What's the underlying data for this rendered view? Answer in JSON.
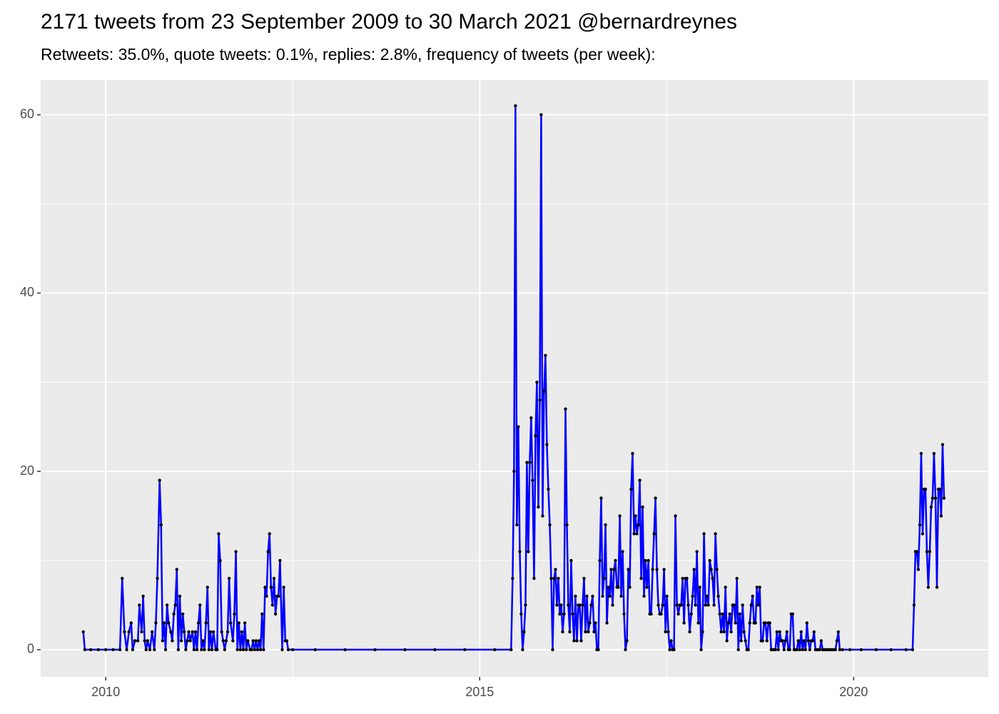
{
  "chart_data": {
    "type": "line",
    "title": "2171 tweets from 23 September 2009 to 30 March 2021 @bernardreynes",
    "subtitle": "Retweets: 35.0%, quote tweets: 0.1%, replies: 2.8%, frequency of tweets (per week):",
    "color": "#0000ff",
    "point_color": "#000000",
    "grid": true,
    "minor_grid": true,
    "xlim": [
      2009.13,
      2021.8
    ],
    "ylim": [
      -3.05,
      63.9
    ],
    "xticks": [
      2010,
      2015,
      2020
    ],
    "yticks": [
      0,
      20,
      40,
      60
    ],
    "x": [
      2009.7,
      2009.72,
      2009.8,
      2009.9,
      2010.0,
      2010.1,
      2010.19,
      2010.22,
      2010.25,
      2010.28,
      2010.31,
      2010.34,
      2010.36,
      2010.39,
      2010.43,
      2010.45,
      2010.48,
      2010.5,
      2010.52,
      2010.54,
      2010.56,
      2010.59,
      2010.62,
      2010.65,
      2010.67,
      2010.69,
      2010.72,
      2010.74,
      2010.76,
      2010.78,
      2010.8,
      2010.82,
      2010.84,
      2010.87,
      2010.89,
      2010.91,
      2010.93,
      2010.95,
      2010.97,
      2010.99,
      2011.01,
      2011.03,
      2011.05,
      2011.07,
      2011.09,
      2011.11,
      2011.13,
      2011.16,
      2011.18,
      2011.2,
      2011.22,
      2011.24,
      2011.26,
      2011.28,
      2011.3,
      2011.32,
      2011.34,
      2011.36,
      2011.38,
      2011.4,
      2011.42,
      2011.44,
      2011.47,
      2011.49,
      2011.51,
      2011.53,
      2011.55,
      2011.57,
      2011.59,
      2011.61,
      2011.63,
      2011.65,
      2011.67,
      2011.7,
      2011.72,
      2011.74,
      2011.76,
      2011.78,
      2011.8,
      2011.82,
      2011.84,
      2011.86,
      2011.88,
      2011.9,
      2011.93,
      2011.95,
      2011.97,
      2011.99,
      2012.01,
      2012.03,
      2012.05,
      2012.07,
      2012.09,
      2012.11,
      2012.13,
      2012.15,
      2012.17,
      2012.19,
      2012.21,
      2012.23,
      2012.25,
      2012.27,
      2012.29,
      2012.31,
      2012.33,
      2012.36,
      2012.38,
      2012.4,
      2012.42,
      2012.44,
      2012.5,
      2012.8,
      2013.2,
      2013.6,
      2014.0,
      2014.4,
      2014.8,
      2015.2,
      2015.42,
      2015.44,
      2015.459,
      2015.478,
      2015.497,
      2015.516,
      2015.536,
      2015.555,
      2015.574,
      2015.593,
      2015.612,
      2015.631,
      2015.65,
      2015.669,
      2015.688,
      2015.707,
      2015.727,
      2015.746,
      2015.765,
      2015.784,
      2015.803,
      2015.822,
      2015.841,
      2015.86,
      2015.879,
      2015.898,
      2015.918,
      2015.937,
      2015.956,
      2015.975,
      2015.994,
      2016.013,
      2016.032,
      2016.051,
      2016.07,
      2016.089,
      2016.109,
      2016.128,
      2016.147,
      2016.166,
      2016.185,
      2016.204,
      2016.223,
      2016.242,
      2016.261,
      2016.28,
      2016.3,
      2016.319,
      2016.338,
      2016.357,
      2016.376,
      2016.395,
      2016.414,
      2016.433,
      2016.452,
      2016.471,
      2016.491,
      2016.51,
      2016.529,
      2016.548,
      2016.567,
      2016.586,
      2016.605,
      2016.624,
      2016.643,
      2016.662,
      2016.682,
      2016.701,
      2016.72,
      2016.739,
      2016.758,
      2016.777,
      2016.796,
      2016.815,
      2016.834,
      2016.853,
      2016.873,
      2016.892,
      2016.911,
      2016.93,
      2016.949,
      2016.968,
      2016.987,
      2017.006,
      2017.025,
      2017.044,
      2017.064,
      2017.083,
      2017.102,
      2017.121,
      2017.14,
      2017.159,
      2017.178,
      2017.197,
      2017.216,
      2017.235,
      2017.255,
      2017.274,
      2017.293,
      2017.312,
      2017.331,
      2017.35,
      2017.369,
      2017.388,
      2017.407,
      2017.426,
      2017.446,
      2017.465,
      2017.484,
      2017.503,
      2017.522,
      2017.541,
      2017.56,
      2017.579,
      2017.598,
      2017.617,
      2017.637,
      2017.656,
      2017.675,
      2017.694,
      2017.713,
      2017.732,
      2017.751,
      2017.77,
      2017.789,
      2017.808,
      2017.828,
      2017.847,
      2017.866,
      2017.885,
      2017.904,
      2017.923,
      2017.942,
      2017.961,
      2017.98,
      2017.999,
      2018.019,
      2018.038,
      2018.057,
      2018.076,
      2018.095,
      2018.114,
      2018.133,
      2018.152,
      2018.171,
      2018.19,
      2018.21,
      2018.229,
      2018.248,
      2018.267,
      2018.286,
      2018.305,
      2018.324,
      2018.343,
      2018.362,
      2018.381,
      2018.401,
      2018.42,
      2018.439,
      2018.458,
      2018.477,
      2018.496,
      2018.515,
      2018.534,
      2018.553,
      2018.572,
      2018.592,
      2018.611,
      2018.63,
      2018.649,
      2018.668,
      2018.687,
      2018.706,
      2018.725,
      2018.744,
      2018.763,
      2018.783,
      2018.802,
      2018.821,
      2018.84,
      2018.859,
      2018.878,
      2018.897,
      2018.916,
      2018.935,
      2018.954,
      2018.974,
      2018.993,
      2019.012,
      2019.031,
      2019.05,
      2019.069,
      2019.088,
      2019.107,
      2019.126,
      2019.145,
      2019.165,
      2019.184,
      2019.203,
      2019.222,
      2019.241,
      2019.26,
      2019.279,
      2019.298,
      2019.317,
      2019.336,
      2019.356,
      2019.375,
      2019.394,
      2019.413,
      2019.432,
      2019.451,
      2019.47,
      2019.489,
      2019.508,
      2019.527,
      2019.547,
      2019.566,
      2019.585,
      2019.604,
      2019.623,
      2019.642,
      2019.661,
      2019.68,
      2019.699,
      2019.718,
      2019.738,
      2019.757,
      2019.776,
      2019.795,
      2019.814,
      2019.85,
      2019.95,
      2020.1,
      2020.3,
      2020.5,
      2020.7,
      2020.788,
      2020.807,
      2020.826,
      2020.845,
      2020.864,
      2020.884,
      2020.903,
      2020.922,
      2020.941,
      2020.96,
      2020.979,
      2020.998,
      2021.017,
      2021.036,
      2021.055,
      2021.074,
      2021.094,
      2021.113,
      2021.132,
      2021.151,
      2021.17,
      2021.189,
      2021.208
    ],
    "values": [
      2,
      0,
      0,
      0,
      0,
      0,
      0,
      8,
      2,
      0,
      2,
      3,
      0,
      1,
      1,
      5,
      2,
      6,
      1,
      0,
      1,
      0,
      2,
      0,
      3,
      8,
      19,
      14,
      1,
      3,
      0,
      5,
      3,
      2,
      1,
      4,
      5,
      9,
      0,
      6,
      1,
      4,
      2,
      0,
      1,
      2,
      1,
      2,
      0,
      2,
      0,
      3,
      5,
      0,
      1,
      0,
      3,
      7,
      0,
      2,
      0,
      2,
      0,
      0,
      13,
      10,
      2,
      1,
      0,
      1,
      2,
      8,
      3,
      1,
      4,
      11,
      0,
      3,
      0,
      2,
      0,
      3,
      0,
      1,
      0,
      0,
      1,
      0,
      1,
      0,
      1,
      0,
      4,
      0,
      7,
      6,
      11,
      13,
      7,
      5,
      8,
      4,
      6,
      6,
      10,
      0,
      7,
      1,
      1,
      0,
      0,
      0,
      0,
      0,
      0,
      0,
      0,
      0,
      0,
      8,
      20,
      61,
      14,
      25,
      11,
      4,
      0,
      2,
      5,
      21,
      11,
      21,
      26,
      19,
      8,
      24,
      30,
      16,
      28,
      60,
      15,
      29,
      33,
      23,
      18,
      14,
      8,
      0,
      8,
      9,
      5,
      8,
      4,
      5,
      2,
      4,
      27,
      14,
      5,
      2,
      10,
      4,
      1,
      6,
      1,
      5,
      5,
      1,
      5,
      8,
      2,
      6,
      2,
      3,
      5,
      6,
      2,
      3,
      0,
      0,
      10,
      17,
      6,
      8,
      14,
      3,
      7,
      6,
      9,
      5,
      9,
      10,
      7,
      7,
      15,
      6,
      11,
      4,
      0,
      1,
      9,
      7,
      18,
      22,
      13,
      15,
      13,
      14,
      19,
      8,
      16,
      6,
      10,
      7,
      10,
      4,
      4,
      9,
      13,
      17,
      9,
      5,
      4,
      4,
      5,
      9,
      2,
      6,
      2,
      0,
      1,
      0,
      0,
      15,
      5,
      4,
      5,
      5,
      8,
      3,
      8,
      8,
      5,
      2,
      4,
      6,
      9,
      5,
      11,
      3,
      7,
      0,
      2,
      13,
      5,
      6,
      5,
      10,
      9,
      8,
      5,
      13,
      9,
      6,
      4,
      2,
      4,
      2,
      7,
      1,
      3,
      4,
      2,
      5,
      5,
      3,
      8,
      0,
      4,
      1,
      5,
      2,
      1,
      0,
      0,
      3,
      5,
      6,
      3,
      3,
      7,
      5,
      7,
      1,
      1,
      3,
      3,
      1,
      3,
      3,
      0,
      0,
      0,
      0,
      2,
      0,
      2,
      1,
      1,
      0,
      1,
      2,
      0,
      0,
      4,
      4,
      0,
      0,
      0,
      1,
      0,
      2,
      0,
      1,
      0,
      3,
      1,
      0,
      1,
      1,
      2,
      0,
      0,
      0,
      0,
      1,
      0,
      0,
      0,
      0,
      0,
      0,
      0,
      0,
      0,
      0,
      1,
      2,
      0,
      0,
      0,
      0,
      0,
      0,
      0,
      0,
      5,
      11,
      11,
      9,
      14,
      22,
      13,
      18,
      18,
      11,
      7,
      11,
      16,
      17,
      22,
      17,
      7,
      18,
      18,
      15,
      23,
      17
    ]
  }
}
